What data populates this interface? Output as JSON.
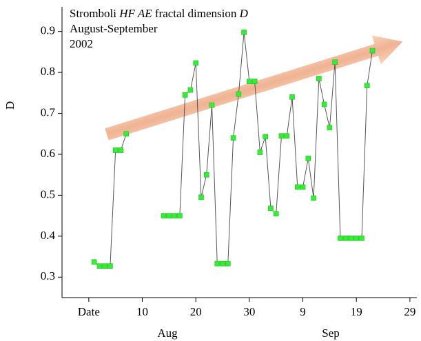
{
  "chart_data": {
    "type": "line",
    "title_lines": [
      [
        "Stromboli ",
        "HF AE",
        " fractal dimension ",
        "D"
      ],
      [
        "August-September"
      ],
      [
        "2002"
      ]
    ],
    "y_label": "D",
    "month_labels": [
      "Aug",
      "Sep"
    ],
    "x": [
      1,
      2,
      3,
      4,
      5,
      6,
      7,
      null,
      14,
      15,
      16,
      17,
      18,
      19,
      20,
      21,
      22,
      23,
      24,
      25,
      26,
      27,
      28,
      29,
      30,
      31,
      32,
      33,
      34,
      35,
      36,
      37,
      38,
      39,
      40,
      41,
      42,
      43,
      44,
      45,
      46,
      47,
      48,
      49,
      50,
      51,
      52,
      53
    ],
    "series": [
      {
        "name": "D",
        "color": "#33ee33",
        "line_color": "#555555",
        "values": [
          0.337,
          0.327,
          0.327,
          0.327,
          0.61,
          0.61,
          0.65,
          null,
          0.45,
          0.45,
          0.45,
          0.45,
          0.745,
          0.757,
          0.823,
          0.495,
          0.55,
          0.72,
          0.333,
          0.333,
          0.333,
          0.64,
          0.747,
          0.898,
          0.778,
          0.778,
          0.605,
          0.643,
          0.468,
          0.455,
          0.645,
          0.645,
          0.74,
          0.52,
          0.52,
          0.59,
          0.493,
          0.785,
          0.722,
          0.665,
          0.825,
          0.395,
          0.395,
          0.395,
          0.395,
          0.395,
          0.768,
          0.853
        ]
      }
    ],
    "xlim": [
      -5,
      61.3
    ],
    "ylim": [
      0.25,
      0.96
    ],
    "xticks": [
      {
        "value": 0,
        "label": "Date"
      },
      10,
      20,
      30,
      {
        "value": 40,
        "label": "9"
      },
      {
        "value": 50,
        "label": "19"
      },
      {
        "value": 60,
        "label": "29"
      }
    ],
    "yticks": [
      0.3,
      0.4,
      0.5,
      0.6,
      0.7,
      0.8,
      0.9
    ]
  }
}
